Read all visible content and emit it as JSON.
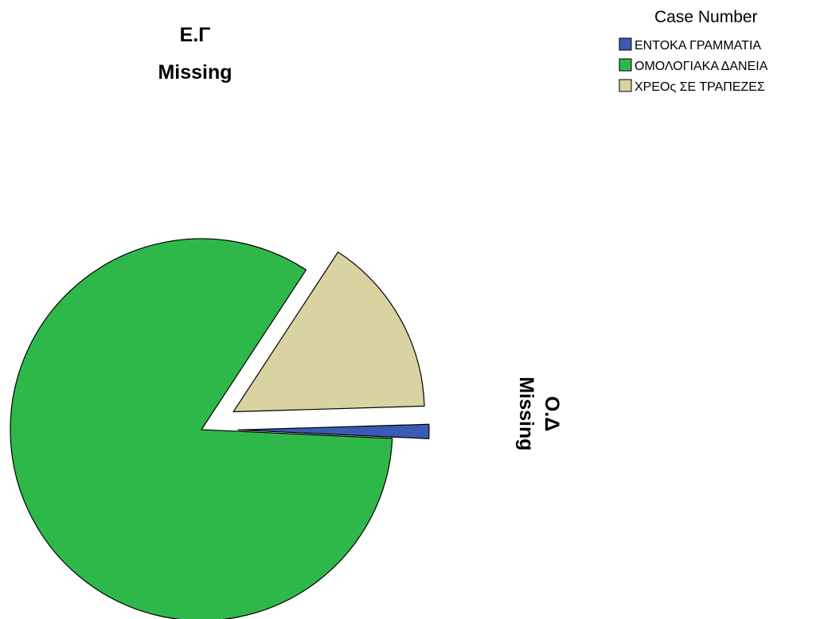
{
  "chart_data": {
    "type": "pie",
    "title": "",
    "legend": {
      "title": "Case Number",
      "position": "top-right",
      "entries": [
        {
          "label": "ΕΝΤΟΚΑ ΓΡΑΜΜΑΤΙΑ",
          "color": "#3a5bb5"
        },
        {
          "label": "ΟΜΟΛΟΓΙΑΚΑ ΔΑΝΕΙΑ",
          "color": "#2fb84a"
        },
        {
          "label": "ΧΡΕΟς ΣΕ ΤΡΑΠΕΖΕΣ",
          "color": "#d8d3a0"
        }
      ]
    },
    "slices": [
      {
        "label": "ΕΝΤΟΚΑ ΓΡΑΜΜΑΤΙΑ",
        "value": 1.2,
        "color": "#3a5bb5",
        "exploded": true
      },
      {
        "label": "ΟΜΟΛΟΓΙΑΚΑ ΔΑΝΕΙΑ",
        "value": 83.5,
        "color": "#2fb84a",
        "exploded": false
      },
      {
        "label": "ΧΡΕΟς ΣΕ ΤΡΑΠΕΖΕΣ",
        "value": 15.3,
        "color": "#d8d3a0",
        "exploded": true
      }
    ],
    "annotations": [
      {
        "line1": "Ε.Γ",
        "line2": "Missing",
        "orientation": "horizontal"
      },
      {
        "line1": "Ο.Δ",
        "line2": "Missing",
        "orientation": "vertical"
      }
    ]
  }
}
